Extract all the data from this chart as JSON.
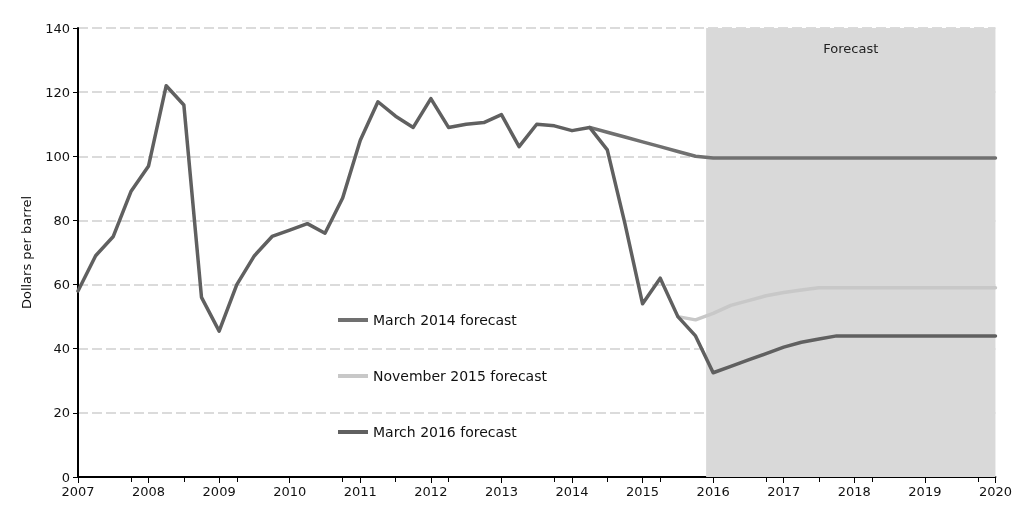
{
  "chart_data": {
    "type": "line",
    "ylabel": "Dollars per barrel",
    "xlim": [
      2007,
      2020
    ],
    "xticks": [
      2007,
      2008,
      2009,
      2010,
      2011,
      2012,
      2013,
      2014,
      2015,
      2016,
      2017,
      2018,
      2019,
      2020
    ],
    "ylim": [
      0,
      140
    ],
    "yticks": [
      0,
      20,
      40,
      60,
      80,
      100,
      120,
      140
    ],
    "grid": "y",
    "legend": "left",
    "bands": [
      {
        "axis": "x",
        "from": 2015.9,
        "to": 2020,
        "label": "Forecast",
        "color": "#d9d9d9"
      }
    ],
    "series": [
      {
        "name": "March 2014 forecast",
        "color": "#707070",
        "x": [
          2014.25,
          2014.5,
          2014.75,
          2015,
          2015.25,
          2015.5,
          2015.75,
          2016,
          2020
        ],
        "values": [
          109,
          107.5,
          106,
          104.5,
          103,
          101.5,
          100,
          99.5,
          99.5
        ]
      },
      {
        "name": "November 2015 forecast",
        "color": "#c8c8c8",
        "x": [
          2015.5,
          2015.75,
          2016,
          2016.25,
          2016.5,
          2016.75,
          2017,
          2017.25,
          2017.5,
          2020
        ],
        "values": [
          50,
          49,
          51,
          53.5,
          55,
          56.5,
          57.5,
          58.3,
          59,
          59
        ]
      },
      {
        "name": "March 2016 forecast",
        "color": "#606060",
        "x": [
          2007,
          2007.25,
          2007.5,
          2007.75,
          2008,
          2008.25,
          2008.5,
          2008.75,
          2009,
          2009.25,
          2009.5,
          2009.75,
          2010,
          2010.25,
          2010.5,
          2010.75,
          2011,
          2011.25,
          2011.5,
          2011.75,
          2012,
          2012.25,
          2012.5,
          2012.75,
          2013,
          2013.25,
          2013.5,
          2013.75,
          2014,
          2014.25,
          2014.5,
          2014.75,
          2015,
          2015.25,
          2015.5,
          2015.75,
          2016,
          2016.25,
          2016.5,
          2016.75,
          2017,
          2017.25,
          2017.5,
          2017.75,
          2020
        ],
        "values": [
          58,
          69,
          75,
          89,
          97,
          122,
          116,
          56,
          45.5,
          60,
          69,
          75,
          77,
          79,
          76,
          87,
          105,
          117,
          112.5,
          109,
          118,
          109,
          110,
          110.5,
          113,
          103,
          110,
          109.5,
          108,
          109,
          102,
          79,
          54,
          62,
          50,
          44,
          32.5,
          34.5,
          36.5,
          38.5,
          40.5,
          42,
          43,
          44,
          44
        ]
      }
    ]
  }
}
